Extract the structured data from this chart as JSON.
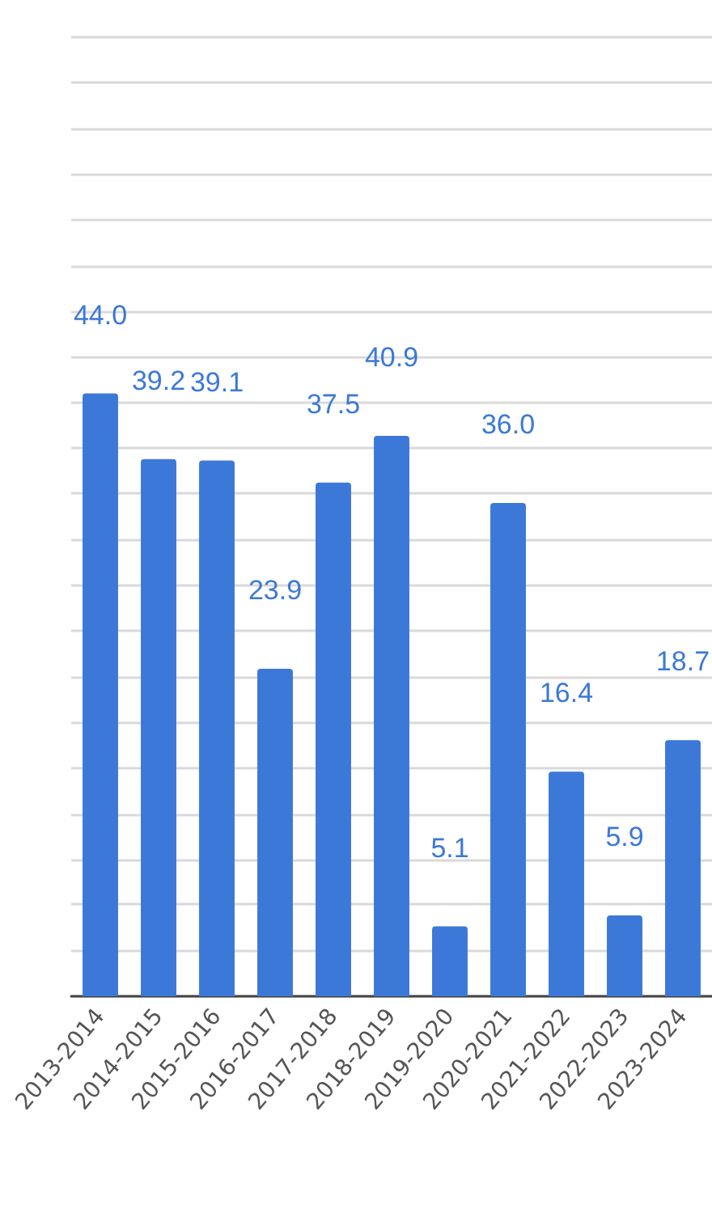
{
  "chart_data": {
    "type": "bar",
    "categories": [
      "2013-2014",
      "2014-2015",
      "2015-2016",
      "2016-2017",
      "2017-2018",
      "2018-2019",
      "2019-2020",
      "2020-2021",
      "2021-2022",
      "2022-2023",
      "2023-2024"
    ],
    "series": [
      {
        "color": "#3c78d8",
        "values": [
          44.0,
          39.2,
          39.1,
          23.9,
          37.5,
          40.9,
          5.1,
          36.0,
          16.4,
          5.9,
          18.7
        ],
        "value_labels": [
          "44.0",
          "39.2",
          "39.1",
          "23.9",
          "37.5",
          "40.9",
          "5.1",
          "36.0",
          "16.4",
          "5.9",
          "18.7"
        ]
      }
    ],
    "yticks": [
      {
        "value": 0,
        "label": null
      },
      {
        "value": 3.3,
        "label": null
      },
      {
        "value": 6.7,
        "label": null
      },
      {
        "value": 10,
        "label": null
      },
      {
        "value": 13.3,
        "label": null
      },
      {
        "value": 16.7,
        "label": null
      },
      {
        "value": 20,
        "label": null
      },
      {
        "value": 23.3,
        "label": null
      },
      {
        "value": 26.7,
        "label": null
      },
      {
        "value": 30,
        "label": null
      },
      {
        "value": 33.3,
        "label": null
      },
      {
        "value": 36.7,
        "label": null
      },
      {
        "value": 40,
        "label": null
      },
      {
        "value": 43.3,
        "label": null
      },
      {
        "value": 46.7,
        "label": null
      },
      {
        "value": 50,
        "label": null
      },
      {
        "value": 53.3,
        "label": null
      },
      {
        "value": 56.7,
        "label": null
      },
      {
        "value": 60,
        "label": null
      },
      {
        "value": 63.3,
        "label": null
      },
      {
        "value": 66.7,
        "label": null
      },
      {
        "value": 70,
        "label": null
      }
    ],
    "grid": "y",
    "tick_labels": "x"
  }
}
